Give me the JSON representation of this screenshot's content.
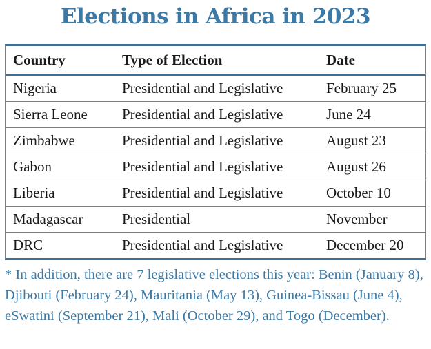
{
  "title": "Elections in Africa in 2023",
  "colors": {
    "accent": "#3b79a6",
    "rule": "#3d6f97"
  },
  "table": {
    "headers": {
      "country": "Country",
      "type": "Type of Election",
      "date": "Date"
    },
    "rows": [
      {
        "country": "Nigeria",
        "type": "Presidential and Legislative",
        "date": "February 25"
      },
      {
        "country": "Sierra Leone",
        "type": "Presidential and Legislative",
        "date": "June 24"
      },
      {
        "country": "Zimbabwe",
        "type": "Presidential and Legislative",
        "date": "August 23"
      },
      {
        "country": "Gabon",
        "type": "Presidential and Legislative",
        "date": "August 26"
      },
      {
        "country": "Liberia",
        "type": "Presidential and Legislative",
        "date": "October 10"
      },
      {
        "country": "Madagascar",
        "type": "Presidential",
        "date": "November"
      },
      {
        "country": "DRC",
        "type": "Presidential and Legislative",
        "date": "December 20"
      }
    ]
  },
  "footnote": "* In addition, there are 7 legislative elections this year: Benin (January 8), Djibouti (February 24), Mauritania (May 13), Guinea-Bissau (June 4), eSwatini (September 21), Mali (October 29), and Togo (December)."
}
